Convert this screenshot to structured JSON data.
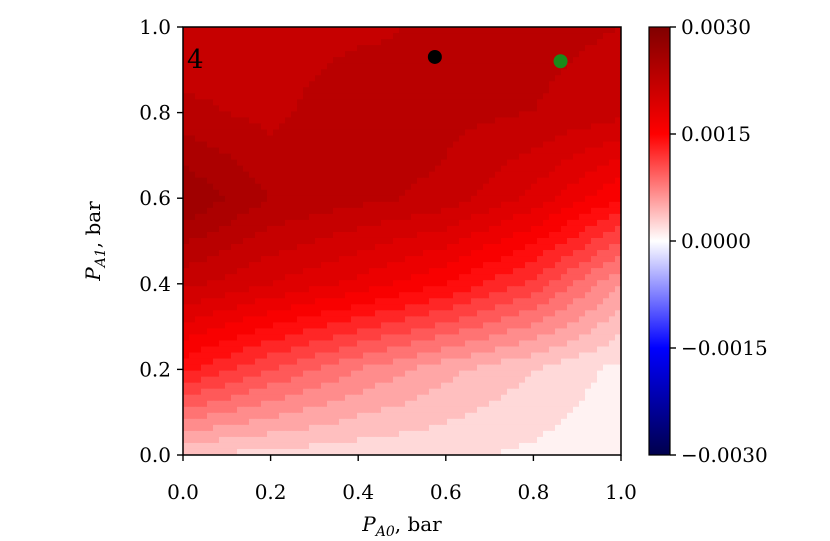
{
  "chart_data": {
    "type": "heatmap",
    "panel_label": "4",
    "xlabel": {
      "italic": "P",
      "sub": "A0",
      "unit": ", bar"
    },
    "ylabel": {
      "italic": "P",
      "sub": "A1",
      "unit": ", bar"
    },
    "xlim": [
      0.0,
      1.0
    ],
    "ylim": [
      0.0,
      1.0
    ],
    "x_ticks": [
      "0.0",
      "0.2",
      "0.4",
      "0.6",
      "0.8",
      "1.0"
    ],
    "y_ticks": [
      "0.0",
      "0.2",
      "0.4",
      "0.6",
      "0.8",
      "1.0"
    ],
    "colorbar": {
      "min": -0.003,
      "max": 0.003,
      "ticks": [
        "-0.0030",
        "-0.0015",
        "0.0000",
        "0.0015",
        "0.0030"
      ],
      "tick_values": [
        -0.003,
        -0.0015,
        0.0,
        0.0015,
        0.003
      ],
      "colormap": "seismic"
    },
    "field_grid": {
      "x": [
        0.0,
        0.2,
        0.4,
        0.6,
        0.8,
        1.0
      ],
      "y": [
        0.0,
        0.2,
        0.4,
        0.6,
        0.8,
        1.0
      ],
      "z": [
        [
          0.0003,
          0.00025,
          0.0002,
          0.00018,
          0.00012,
          5e-05
        ],
        [
          0.0014,
          0.00105,
          0.00075,
          0.0005,
          0.0003,
          0.0001
        ],
        [
          0.00215,
          0.00195,
          0.00175,
          0.0015,
          0.00115,
          0.0006
        ],
        [
          0.0027,
          0.0024,
          0.0023,
          0.0022,
          0.0019,
          0.0015
        ],
        [
          0.0023,
          0.0022,
          0.0024,
          0.0023,
          0.00225,
          0.00215
        ],
        [
          0.0021,
          0.00215,
          0.0022,
          0.0023,
          0.0023,
          0.00225
        ]
      ]
    },
    "points": [
      {
        "x": 0.575,
        "y": 0.93,
        "color": "#000000"
      },
      {
        "x": 0.862,
        "y": 0.92,
        "color": "#1a8a1a"
      }
    ]
  }
}
